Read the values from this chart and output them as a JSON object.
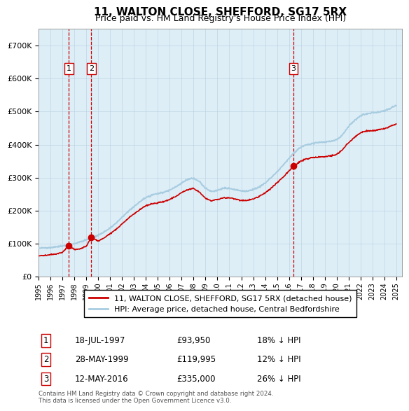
{
  "title": "11, WALTON CLOSE, SHEFFORD, SG17 5RX",
  "subtitle": "Price paid vs. HM Land Registry's House Price Index (HPI)",
  "sale_prices": [
    93950,
    119995,
    335000
  ],
  "sale_labels": [
    "1",
    "2",
    "3"
  ],
  "sale_info": [
    {
      "num": "1",
      "date": "18-JUL-1997",
      "price": "£93,950",
      "pct": "18% ↓ HPI"
    },
    {
      "num": "2",
      "date": "28-MAY-1999",
      "price": "£119,995",
      "pct": "12% ↓ HPI"
    },
    {
      "num": "3",
      "date": "12-MAY-2016",
      "price": "£335,000",
      "pct": "26% ↓ HPI"
    }
  ],
  "legend_property": "11, WALTON CLOSE, SHEFFORD, SG17 5RX (detached house)",
  "legend_hpi": "HPI: Average price, detached house, Central Bedfordshire",
  "footer": "Contains HM Land Registry data © Crown copyright and database right 2024.\nThis data is licensed under the Open Government Licence v3.0.",
  "property_line_color": "#cc0000",
  "hpi_line_color": "#a8cce0",
  "sale_dot_color": "#cc0000",
  "vline_color": "#cc0000",
  "background_color": "#ddeef7",
  "plot_bg_color": "#ffffff",
  "ylim": [
    0,
    750000
  ],
  "xlim_start": 1995.0,
  "xlim_end": 2025.5,
  "sale_years": [
    1997.54,
    1999.41,
    2016.37
  ],
  "hpi_x": [
    1995.0,
    1995.5,
    1996.0,
    1996.5,
    1997.0,
    1997.5,
    1998.0,
    1998.5,
    1999.0,
    1999.5,
    2000.0,
    2000.5,
    2001.0,
    2001.5,
    2002.0,
    2002.5,
    2003.0,
    2003.5,
    2004.0,
    2004.5,
    2005.0,
    2005.5,
    2006.0,
    2006.5,
    2007.0,
    2007.5,
    2008.0,
    2008.5,
    2009.0,
    2009.5,
    2010.0,
    2010.5,
    2011.0,
    2011.5,
    2012.0,
    2012.5,
    2013.0,
    2013.5,
    2014.0,
    2014.5,
    2015.0,
    2015.5,
    2016.0,
    2016.5,
    2017.0,
    2017.5,
    2018.0,
    2018.5,
    2019.0,
    2019.5,
    2020.0,
    2020.5,
    2021.0,
    2021.5,
    2022.0,
    2022.5,
    2023.0,
    2023.5,
    2024.0,
    2024.5,
    2025.0
  ],
  "hpi_y": [
    87000,
    88000,
    89000,
    91000,
    93000,
    96000,
    100000,
    106000,
    112000,
    118000,
    126000,
    136000,
    148000,
    163000,
    180000,
    197000,
    213000,
    228000,
    240000,
    248000,
    252000,
    256000,
    262000,
    272000,
    284000,
    295000,
    298000,
    288000,
    268000,
    258000,
    262000,
    268000,
    268000,
    264000,
    260000,
    260000,
    264000,
    272000,
    284000,
    300000,
    318000,
    338000,
    358000,
    378000,
    392000,
    400000,
    404000,
    406000,
    408000,
    410000,
    414000,
    430000,
    455000,
    472000,
    488000,
    494000,
    496000,
    498000,
    502000,
    510000,
    520000
  ],
  "prop_x": [
    1995.0,
    1995.5,
    1996.0,
    1996.5,
    1997.0,
    1997.54,
    1998.0,
    1998.5,
    1999.0,
    1999.41,
    2000.0,
    2000.5,
    2001.0,
    2001.5,
    2002.0,
    2002.5,
    2003.0,
    2003.5,
    2004.0,
    2004.5,
    2005.0,
    2005.5,
    2006.0,
    2006.5,
    2007.0,
    2007.5,
    2008.0,
    2008.5,
    2009.0,
    2009.5,
    2010.0,
    2010.5,
    2011.0,
    2011.5,
    2012.0,
    2012.5,
    2013.0,
    2013.5,
    2014.0,
    2014.5,
    2015.0,
    2015.5,
    2016.0,
    2016.37,
    2017.0,
    2017.5,
    2018.0,
    2018.5,
    2019.0,
    2019.5,
    2020.0,
    2020.5,
    2021.0,
    2021.5,
    2022.0,
    2022.5,
    2023.0,
    2023.5,
    2024.0,
    2024.5,
    2025.0
  ],
  "prop_y": [
    63000,
    65000,
    67000,
    70000,
    74000,
    93950,
    82000,
    85000,
    92000,
    119995,
    108000,
    118000,
    130000,
    144000,
    160000,
    176000,
    191000,
    204000,
    215000,
    221000,
    224000,
    228000,
    234000,
    243000,
    255000,
    264000,
    267000,
    256000,
    238000,
    230000,
    234000,
    239000,
    239000,
    235000,
    231000,
    231000,
    235000,
    243000,
    254000,
    268000,
    284000,
    302000,
    320000,
    335000,
    350000,
    357000,
    361000,
    362000,
    364000,
    366000,
    370000,
    385000,
    406000,
    421000,
    436000,
    441000,
    442000,
    445000,
    448000,
    455000,
    463000
  ]
}
